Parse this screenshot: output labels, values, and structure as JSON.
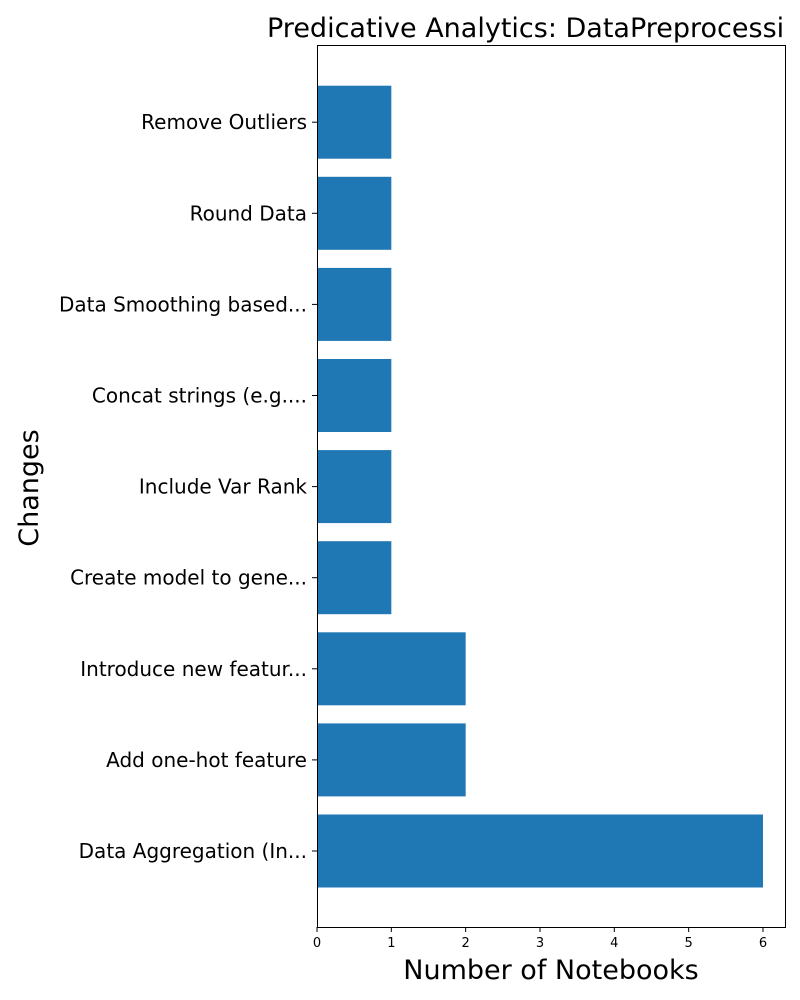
{
  "chart_data": {
    "type": "bar",
    "orientation": "horizontal",
    "title": "Predicative Analytics: DataPreprocessi",
    "xlabel": "Number of Notebooks",
    "ylabel": "Changes",
    "categories": [
      "Data Aggregation (In...",
      "Add one-hot feature",
      "Introduce new featur...",
      "Create model to gene...",
      "Include Var Rank",
      "Concat strings (e.g....",
      "Data Smoothing based...",
      "Round Data",
      "Remove Outliers"
    ],
    "values": [
      6,
      2,
      2,
      1,
      1,
      1,
      1,
      1,
      1
    ],
    "xticks": [
      "0",
      "1",
      "2",
      "3",
      "4",
      "5",
      "6"
    ],
    "xlim": [
      0,
      6.3
    ],
    "grid": false,
    "bar_color": "#1f77b4"
  }
}
